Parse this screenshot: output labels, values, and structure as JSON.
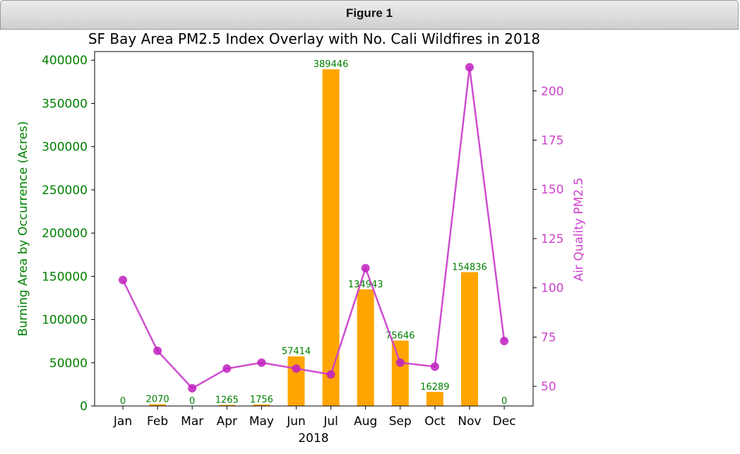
{
  "window": {
    "title": "Figure 1"
  },
  "colors": {
    "bar": "#ffa500",
    "line": "#cc44cc",
    "left_axis": "#008000",
    "right_axis": "#cc44cc",
    "bar_label": "#008000"
  },
  "chart_data": {
    "type": "bar",
    "title": "SF Bay Area PM2.5 Index Overlay with No. Cali Wildfires in 2018",
    "xlabel": "2018",
    "ylabel": "Burning Area by Occurrence (Acres)",
    "y2label": "Air Quality PM2.5",
    "categories": [
      "Jan",
      "Feb",
      "Mar",
      "Apr",
      "May",
      "Jun",
      "Jul",
      "Aug",
      "Sep",
      "Oct",
      "Nov",
      "Dec"
    ],
    "ylim": [
      0,
      410000
    ],
    "yticks": [
      0,
      50000,
      100000,
      150000,
      200000,
      250000,
      300000,
      350000,
      400000
    ],
    "y2lim": [
      40,
      220
    ],
    "y2ticks": [
      50,
      75,
      100,
      125,
      150,
      175,
      200
    ],
    "series": [
      {
        "type": "bar",
        "values": [
          0,
          2070,
          0,
          1265,
          1756,
          57414,
          389446,
          134943,
          75646,
          16289,
          154836,
          0
        ],
        "labels": [
          "0",
          "2070",
          "0",
          "1265",
          "1756",
          "57414",
          "389446",
          "134943",
          "75646",
          "16289",
          "154836",
          "0"
        ]
      },
      {
        "type": "line",
        "axis": "right",
        "values": [
          104,
          68,
          49,
          59,
          62,
          59,
          56,
          110,
          62,
          60,
          212,
          73
        ]
      }
    ],
    "grid": false
  }
}
